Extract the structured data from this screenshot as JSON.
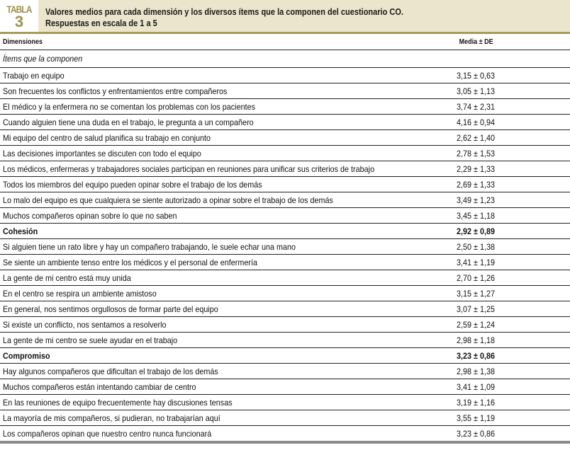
{
  "table_label": {
    "word": "TABLA",
    "number": "3"
  },
  "caption": {
    "line1": "Valores medios para cada dimensión y los diversos ítems que la componen del cuestionario CO.",
    "line2": "Respuestas en escala de 1 a 5"
  },
  "columns": {
    "dimension": "Dimensiones",
    "value": "Media ± DE"
  },
  "subheader": "Ítems que la componen",
  "rows": [
    {
      "label": "Trabajo en equipo",
      "value": "3,15 ± 0,63"
    },
    {
      "label": "Son frecuentes los conflictos y enfrentamientos entre compañeros",
      "value": "3,05 ± 1,13"
    },
    {
      "label": "El médico y la enfermera no se comentan los problemas con los pacientes",
      "value": "3,74 ± 2,31"
    },
    {
      "label": "Cuando alguien tiene una duda en el trabajo, le pregunta a un compañero",
      "value": "4,16 ± 0,94"
    },
    {
      "label": "Mi equipo del centro de salud planifica su trabajo en conjunto",
      "value": "2,62 ± 1,40"
    },
    {
      "label": "Las decisiones importantes se discuten con todo el equipo",
      "value": "2,78 ± 1,53"
    },
    {
      "label": "Los médicos, enfermeras y trabajadores sociales participan en reuniones para unificar sus criterios de trabajo",
      "value": "2,29 ± 1,33"
    },
    {
      "label": "Todos los miembros del equipo pueden opinar sobre el trabajo de los demás",
      "value": "2,69 ± 1,33"
    },
    {
      "label": "Lo malo del equipo es que cualquiera se siente autorizado a opinar sobre el trabajo de los demás",
      "value": "3,49 ± 1,23"
    },
    {
      "label": "Muchos compañeros opinan sobre lo que no saben",
      "value": "3,45 ± 1,18"
    },
    {
      "label": "Cohesión",
      "value": "2,92 ± 0,89",
      "bold": true
    },
    {
      "label": "Si alguien tiene un rato libre y hay un compañero trabajando, le suele echar una mano",
      "value": "2,50 ± 1,38"
    },
    {
      "label": "Se siente un ambiente tenso entre los médicos y el personal de enfermería",
      "value": "3,41 ± 1,19"
    },
    {
      "label": "La gente de mi centro está muy unida",
      "value": "2,70 ± 1,26"
    },
    {
      "label": "En el centro se respira un ambiente amistoso",
      "value": "3,15 ± 1,27"
    },
    {
      "label": "En general, nos sentimos orgullosos de formar parte del equipo",
      "value": "3,07 ± 1,25"
    },
    {
      "label": "Si existe un conflicto, nos sentamos a resolverlo",
      "value": "2,59 ± 1,24"
    },
    {
      "label": "La gente de mi centro se suele ayudar en el trabajo",
      "value": "2,98 ± 1,18"
    },
    {
      "label": "Compromiso",
      "value": "3,23 ± 0,86",
      "bold": true
    },
    {
      "label": "Hay algunos compañeros que dificultan el trabajo de los demás",
      "value": "2,98 ± 1,38"
    },
    {
      "label": "Muchos compañeros están intentando cambiar de centro",
      "value": "3,41 ± 1,09"
    },
    {
      "label": "En las reuniones de equipo frecuentemente hay discusiones tensas",
      "value": "3,19 ± 1,16"
    },
    {
      "label": "La mayoría de mis compañeros, si pudieran, no trabajarían aquí",
      "value": "3,55 ± 1,19"
    },
    {
      "label": "Los compañeros opinan que nuestro centro nunca funcionará",
      "value": "3,23 ± 0,86"
    }
  ]
}
